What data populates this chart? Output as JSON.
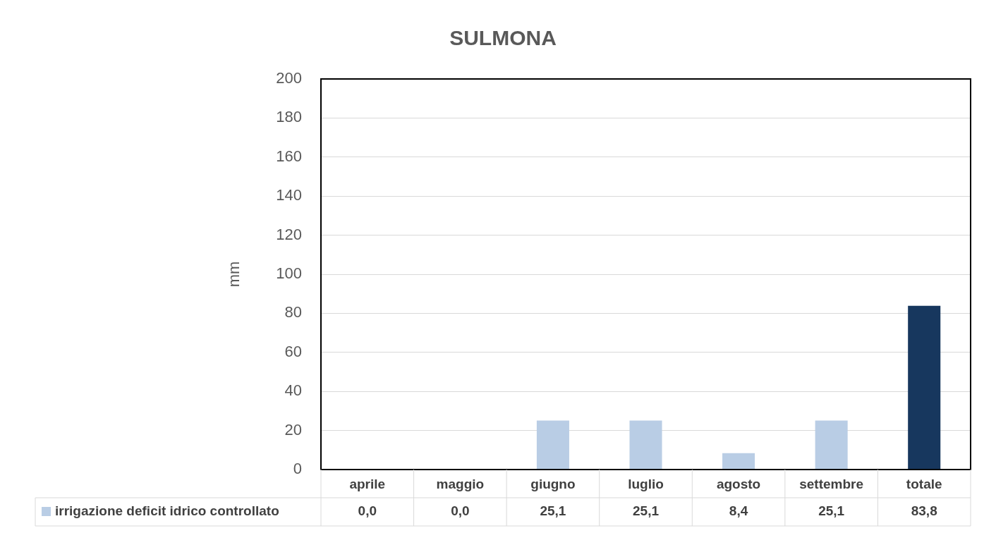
{
  "chart_data": {
    "type": "bar",
    "title": "SULMONA",
    "ylabel": "mm",
    "categories": [
      "aprile",
      "maggio",
      "giugno",
      "luglio",
      "agosto",
      "settembre",
      "totale"
    ],
    "series": [
      {
        "name": "irrigazione deficit idrico controllato",
        "colors": [
          "#b9cde5",
          "#b9cde5",
          "#b9cde5",
          "#b9cde5",
          "#b9cde5",
          "#b9cde5",
          "#17375e"
        ],
        "values": [
          0.0,
          0.0,
          25.1,
          25.1,
          8.4,
          25.1,
          83.8
        ],
        "value_labels": [
          "0,0",
          "0,0",
          "25,1",
          "25,1",
          "8,4",
          "25,1",
          "83,8"
        ]
      }
    ],
    "ylim": [
      0,
      200
    ],
    "yticks": [
      0,
      20,
      40,
      60,
      80,
      100,
      120,
      140,
      160,
      180,
      200
    ],
    "grid": "y",
    "legend": "bottom"
  }
}
